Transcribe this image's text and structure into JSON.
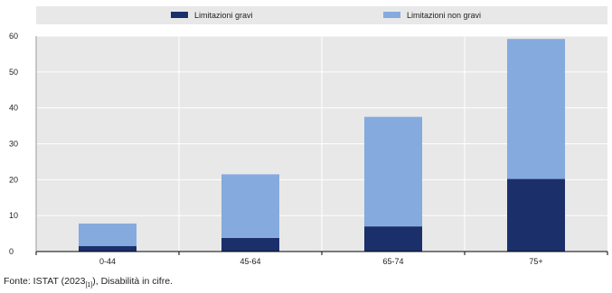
{
  "chart_data": {
    "type": "bar",
    "stacked": true,
    "categories": [
      "0-44",
      "45-64",
      "65-74",
      "75+"
    ],
    "series": [
      {
        "name": "Limitazioni gravi",
        "values": [
          1.5,
          3.8,
          7.0,
          20.2
        ],
        "color": "#1b2f6b"
      },
      {
        "name": "Limitazioni non gravi",
        "values": [
          6.3,
          17.7,
          30.5,
          39.0
        ],
        "color": "#85aade"
      }
    ],
    "ylim": [
      0,
      60
    ],
    "yticks": [
      "0",
      "10",
      "20",
      "30",
      "40",
      "50",
      "60"
    ],
    "grid": true,
    "legend_position": "top",
    "xlabel": "",
    "ylabel": "",
    "title": ""
  },
  "source": {
    "prefix": "Fonte: ISTAT (2023",
    "ref": "[1]",
    "suffix": "), Disabilità in cifre."
  },
  "colors": {
    "plot_background": "#e8e8e8",
    "gridline": "#ffffff",
    "axis": "#000000"
  }
}
